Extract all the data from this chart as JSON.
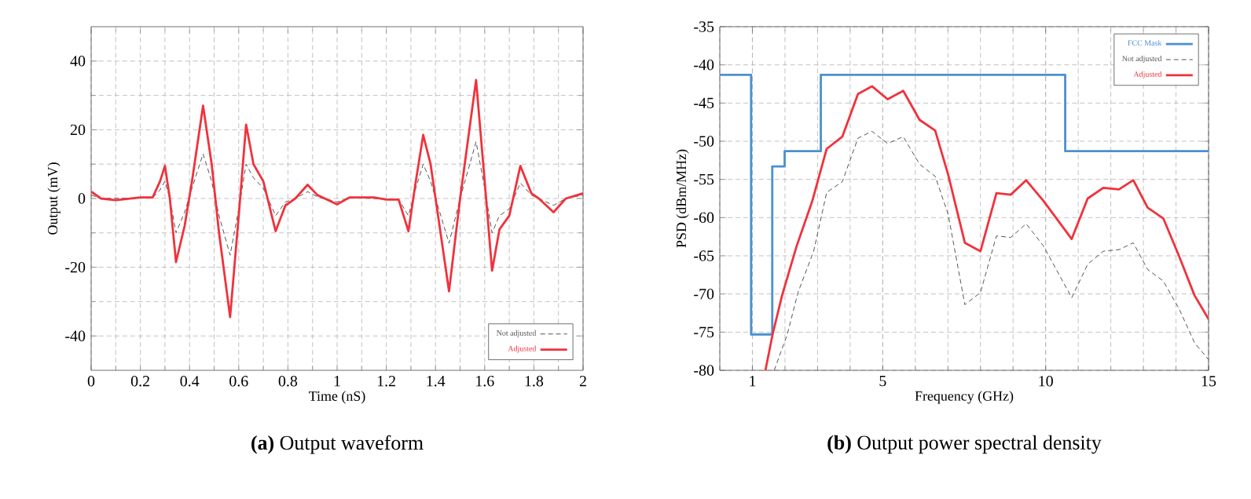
{
  "chart_data": [
    {
      "type": "line",
      "title": "**(a)** Output waveform",
      "xlabel": "Time (nS)",
      "ylabel": "Output (mV)",
      "xlim": [
        0,
        2
      ],
      "ylim": [
        -50,
        50
      ],
      "xticks": [
        0,
        0.2,
        0.4,
        0.6,
        0.8,
        1,
        1.2,
        1.4,
        1.6,
        1.8,
        2
      ],
      "yticks": [
        -40,
        -20,
        0,
        20,
        40
      ],
      "grid": true,
      "legend": "bottom right",
      "x": [
        0,
        0.04,
        0.1,
        0.2,
        0.25,
        0.28,
        0.3,
        0.32,
        0.345,
        0.38,
        0.41,
        0.455,
        0.49,
        0.52,
        0.565,
        0.6,
        0.63,
        0.66,
        0.7,
        0.75,
        0.79,
        0.83,
        0.88,
        0.92,
        1.0,
        1.05,
        1.15,
        1.2,
        1.25,
        1.29,
        1.32,
        1.35,
        1.38,
        1.455,
        1.5,
        1.565,
        1.6,
        1.63,
        1.66,
        1.7,
        1.745,
        1.79,
        1.82,
        1.88,
        1.93,
        2.0
      ],
      "series": [
        {
          "name": "Not adjusted",
          "color": "#555555",
          "line_style": "dashed",
          "values": [
            1,
            0,
            null,
            null,
            0.2,
            2.5,
            5,
            0,
            -10,
            -4,
            3,
            13,
            5,
            -5,
            -16.5,
            -3,
            10,
            6,
            3,
            -5,
            -1,
            0,
            2,
            0.5,
            -1,
            0.2,
            null,
            null,
            -0.2,
            -5,
            3,
            10,
            5,
            -13,
            0,
            16.5,
            3,
            -10,
            -5,
            -3,
            4.5,
            1,
            0,
            -2,
            0,
            1
          ]
        },
        {
          "name": "Adjusted",
          "color": "#f0323c",
          "line_style": "solid",
          "values": [
            2,
            0,
            -0.5,
            0.3,
            0.3,
            5,
            9.5,
            0,
            -18.5,
            -8,
            5,
            27,
            10,
            -10,
            -34.5,
            -5,
            21.5,
            10,
            5,
            -9.5,
            -2,
            0,
            4,
            1,
            -1.7,
            0.3,
            0.3,
            -0.3,
            -0.3,
            -9.5,
            5,
            18.5,
            10,
            -27,
            0,
            34.5,
            5,
            -21,
            -9,
            -5,
            9.5,
            1.5,
            0,
            -4,
            0,
            1.5
          ]
        }
      ]
    },
    {
      "type": "line",
      "title": "**(b)** Output power spectral density",
      "xlabel": "Frequency (GHz)",
      "ylabel": "PSD (dBm/MHz)",
      "xlim": [
        0,
        15
      ],
      "ylim": [
        -80,
        -35
      ],
      "xticks": [
        1,
        5,
        10,
        15
      ],
      "yticks": [
        -80,
        -75,
        -70,
        -65,
        -60,
        -55,
        -50,
        -45,
        -40,
        -35
      ],
      "grid": true,
      "legend": "top right",
      "series": [
        {
          "name": "FCC Mask",
          "type": "step",
          "color": "#4a90d0",
          "line_style": "solid",
          "x": [
            0,
            0.96,
            1.61,
            1.99,
            3.1,
            10.6,
            15
          ],
          "values": [
            -41.3,
            -75.3,
            -53.3,
            -51.3,
            -41.3,
            -51.3,
            -51.3
          ]
        },
        {
          "name": "Not adjusted",
          "color": "#555555",
          "line_style": "dashed",
          "x": [
            1.67,
            2.07,
            2.4,
            2.88,
            3.28,
            3.76,
            4.24,
            4.67,
            5.15,
            5.63,
            6.13,
            6.61,
            7.01,
            7.52,
            8.0,
            8.49,
            8.93,
            9.4,
            9.93,
            10.8,
            11.29,
            11.77,
            12.25,
            12.69,
            13.13,
            13.61,
            14.09,
            14.57,
            15
          ],
          "values": [
            -80,
            -75.3,
            -69.8,
            -64.4,
            -56.7,
            -55.3,
            -49.6,
            -48.7,
            -50.3,
            -49.4,
            -53.0,
            -54.6,
            -59.6,
            -71.4,
            -69.8,
            -62.4,
            -62.6,
            -60.8,
            -63.7,
            -70.5,
            -66.1,
            -64.4,
            -64.2,
            -63.3,
            -66.8,
            -68.3,
            -71.9,
            -76.4,
            -78.6
          ]
        },
        {
          "name": "Adjusted",
          "color": "#f0323c",
          "line_style": "solid",
          "x": [
            1.4,
            1.62,
            1.91,
            2.36,
            2.84,
            3.28,
            3.76,
            4.24,
            4.67,
            5.15,
            5.63,
            6.13,
            6.61,
            7.01,
            7.52,
            8.0,
            8.49,
            8.93,
            9.4,
            9.93,
            10.8,
            11.29,
            11.77,
            12.25,
            12.69,
            13.13,
            13.61,
            14.09,
            14.57,
            15
          ],
          "values": [
            -80,
            -75.3,
            -70.2,
            -63.7,
            -57.8,
            -51,
            -49.4,
            -43.8,
            -42.8,
            -44.5,
            -43.4,
            -47.2,
            -48.6,
            -54.4,
            -63.3,
            -64.4,
            -56.8,
            -57,
            -55.1,
            -57.8,
            -62.8,
            -57.5,
            -56.1,
            -56.3,
            -55.1,
            -58.7,
            -60.1,
            -65.0,
            -70.2,
            -73.3
          ]
        }
      ]
    }
  ]
}
